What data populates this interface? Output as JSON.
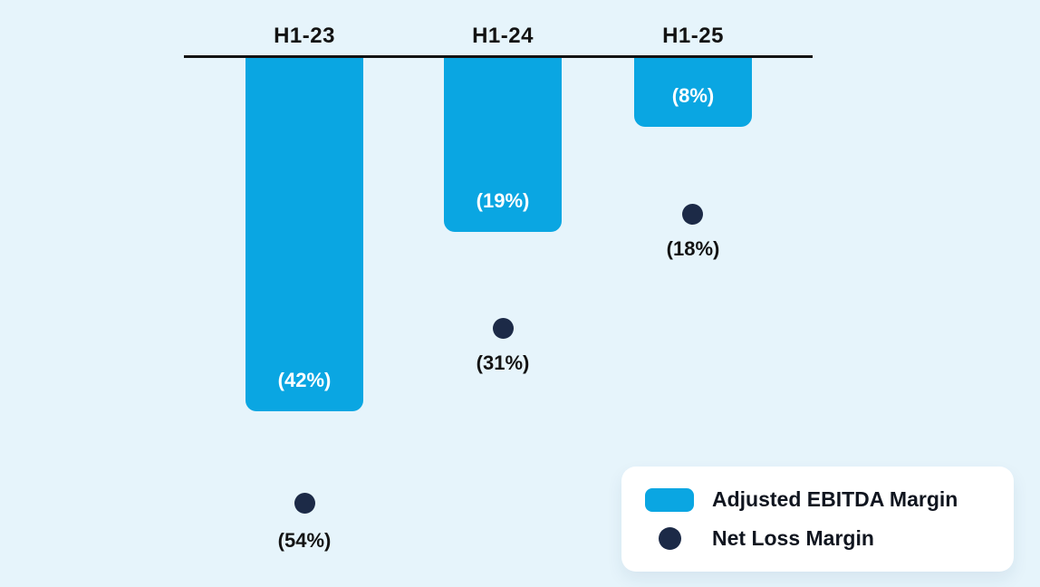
{
  "colors": {
    "bg": "#e6f4fb",
    "bar": "#0aa6e2",
    "dot": "#1c2a47",
    "axis": "#131313",
    "text_dark": "#131313",
    "text_light": "#ffffff",
    "legend_bg": "#ffffff",
    "legend_text": "#10151f"
  },
  "chart_data": {
    "type": "bar",
    "orientation": "columns extend downward from a zero baseline (negative values shown in parentheses)",
    "categories": [
      "H1-23",
      "H1-24",
      "H1-25"
    ],
    "series": [
      {
        "name": "Adjusted EBITDA Margin",
        "style": "bar",
        "values": [
          -42,
          -19,
          -8
        ],
        "labels": [
          "(42%)",
          "(19%)",
          "(8%)"
        ]
      },
      {
        "name": "Net Loss Margin",
        "style": "point",
        "values": [
          -54,
          -31,
          -18
        ],
        "labels": [
          "(54%)",
          "(31%)",
          "(18%)"
        ]
      }
    ],
    "ylim": [
      -60,
      0
    ],
    "grid": false,
    "legend_position": "bottom-right"
  },
  "legend": {
    "items": [
      {
        "label": "Adjusted EBITDA Margin",
        "swatch": "bar"
      },
      {
        "label": "Net Loss Margin",
        "swatch": "dot"
      }
    ]
  }
}
